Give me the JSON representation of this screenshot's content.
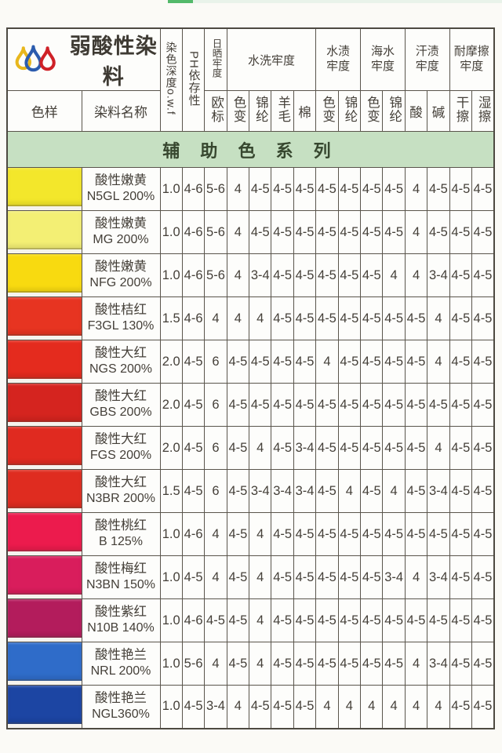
{
  "page": {
    "top_strip_color": "#53b96a"
  },
  "brand": {
    "title": "弱酸性染料",
    "logo_colors": {
      "left": "#e8b71d",
      "middle": "#2c5cae",
      "right": "#cf2127"
    }
  },
  "header": {
    "sample": "色样",
    "dye_name": "染料名称",
    "depth": "染色深度o.w.f",
    "ph": "PH依存性",
    "light_group": "日晒牢度",
    "light_sub": "欧标",
    "wash_group": "水洗牢度",
    "wash_subs": [
      "色变",
      "锦纶",
      "羊毛",
      "棉"
    ],
    "water_group": "水渍\n牢度",
    "water_subs": [
      "色变",
      "锦纶"
    ],
    "sea_group": "海水\n牢度",
    "sea_subs": [
      "色变",
      "锦纶"
    ],
    "sweat_group": "汗渍\n牢度",
    "sweat_subs": [
      "酸",
      "碱"
    ],
    "rub_group": "耐摩擦\n牢度",
    "rub_subs": [
      "干擦",
      "湿擦"
    ]
  },
  "banner": {
    "text": "辅 助 色 系 列",
    "bg": "#c6e0c2"
  },
  "rows": [
    {
      "name": "酸性嫩黄",
      "code": "N5GL 200%",
      "color": "#f3e72b",
      "values": [
        "1.0",
        "4-6",
        "5-6",
        "4",
        "4-5",
        "4-5",
        "4-5",
        "4-5",
        "4-5",
        "4-5",
        "4-5",
        "4",
        "4-5",
        "4-5",
        "4-5"
      ]
    },
    {
      "name": "酸性嫩黄",
      "code": "MG 200%",
      "color": "#f3ef74",
      "values": [
        "1.0",
        "4-6",
        "5-6",
        "4",
        "4-5",
        "4-5",
        "4-5",
        "4-5",
        "4-5",
        "4-5",
        "4-5",
        "4",
        "4-5",
        "4-5",
        "4-5"
      ]
    },
    {
      "name": "酸性嫩黄",
      "code": "NFG 200%",
      "color": "#f8da10",
      "values": [
        "1.0",
        "4-6",
        "5-6",
        "4",
        "3-4",
        "4-5",
        "4-5",
        "4-5",
        "4-5",
        "4-5",
        "4",
        "4",
        "3-4",
        "4-5",
        "4-5"
      ]
    },
    {
      "name": "酸性桔红",
      "code": "F3GL 130%",
      "color": "#e73421",
      "values": [
        "1.5",
        "4-6",
        "4",
        "4",
        "4",
        "4-5",
        "4-5",
        "4-5",
        "4-5",
        "4-5",
        "4-5",
        "4-5",
        "4",
        "4-5",
        "4-5"
      ]
    },
    {
      "name": "酸性大红",
      "code": "NGS 200%",
      "color": "#e42b1e",
      "values": [
        "2.0",
        "4-5",
        "6",
        "4-5",
        "4-5",
        "4-5",
        "4-5",
        "4",
        "4-5",
        "4-5",
        "4-5",
        "4-5",
        "4",
        "4-5",
        "4-5"
      ]
    },
    {
      "name": "酸性大红",
      "code": "GBS 200%",
      "color": "#d5241f",
      "values": [
        "2.0",
        "4-5",
        "6",
        "4-5",
        "4-5",
        "4-5",
        "4-5",
        "4-5",
        "4-5",
        "4-5",
        "4-5",
        "4-5",
        "4-5",
        "4-5",
        "4-5"
      ]
    },
    {
      "name": "酸性大红",
      "code": "FGS 200%",
      "color": "#e02a20",
      "values": [
        "2.0",
        "4-5",
        "6",
        "4-5",
        "4",
        "4-5",
        "3-4",
        "4-5",
        "4-5",
        "4-5",
        "4-5",
        "4-5",
        "4",
        "4-5",
        "4-5"
      ]
    },
    {
      "name": "酸性大红",
      "code": "N3BR 200%",
      "color": "#df2c20",
      "values": [
        "1.5",
        "4-5",
        "6",
        "4-5",
        "3-4",
        "3-4",
        "3-4",
        "4-5",
        "4",
        "4-5",
        "4",
        "4-5",
        "3-4",
        "4-5",
        "4-5"
      ]
    },
    {
      "name": "酸性桃红",
      "code": "B 125%",
      "color": "#ec1b4d",
      "values": [
        "1.0",
        "4-6",
        "4",
        "4-5",
        "4",
        "4-5",
        "4-5",
        "4-5",
        "4-5",
        "4-5",
        "4-5",
        "4-5",
        "4-5",
        "4-5",
        "4-5"
      ]
    },
    {
      "name": "酸性梅红",
      "code": "N3BN 150%",
      "color": "#d91d5c",
      "values": [
        "1.0",
        "4-5",
        "4",
        "4-5",
        "4",
        "4-5",
        "4-5",
        "4-5",
        "4-5",
        "4-5",
        "3-4",
        "4",
        "3-4",
        "4-5",
        "4-5"
      ]
    },
    {
      "name": "酸性紫红",
      "code": "N10B 140%",
      "color": "#b31c5c",
      "values": [
        "1.0",
        "4-6",
        "4-5",
        "4-5",
        "4",
        "4-5",
        "4-5",
        "4-5",
        "4-5",
        "4-5",
        "4-5",
        "4-5",
        "4-5",
        "4-5",
        "4-5"
      ]
    },
    {
      "name": "酸性艳兰",
      "code": "NRL 200%",
      "color": "#2f6cc9",
      "values": [
        "1.0",
        "5-6",
        "4",
        "4-5",
        "4",
        "4-5",
        "4-5",
        "4-5",
        "4-5",
        "4-5",
        "4-5",
        "4",
        "3-4",
        "4-5",
        "4-5"
      ]
    },
    {
      "name": "酸性艳兰",
      "code": "NGL360%",
      "color": "#1c45a3",
      "values": [
        "1.0",
        "4-5",
        "3-4",
        "4",
        "4-5",
        "4-5",
        "4-5",
        "4",
        "4",
        "4",
        "4",
        "4",
        "4",
        "4-5",
        "4-5"
      ]
    }
  ]
}
